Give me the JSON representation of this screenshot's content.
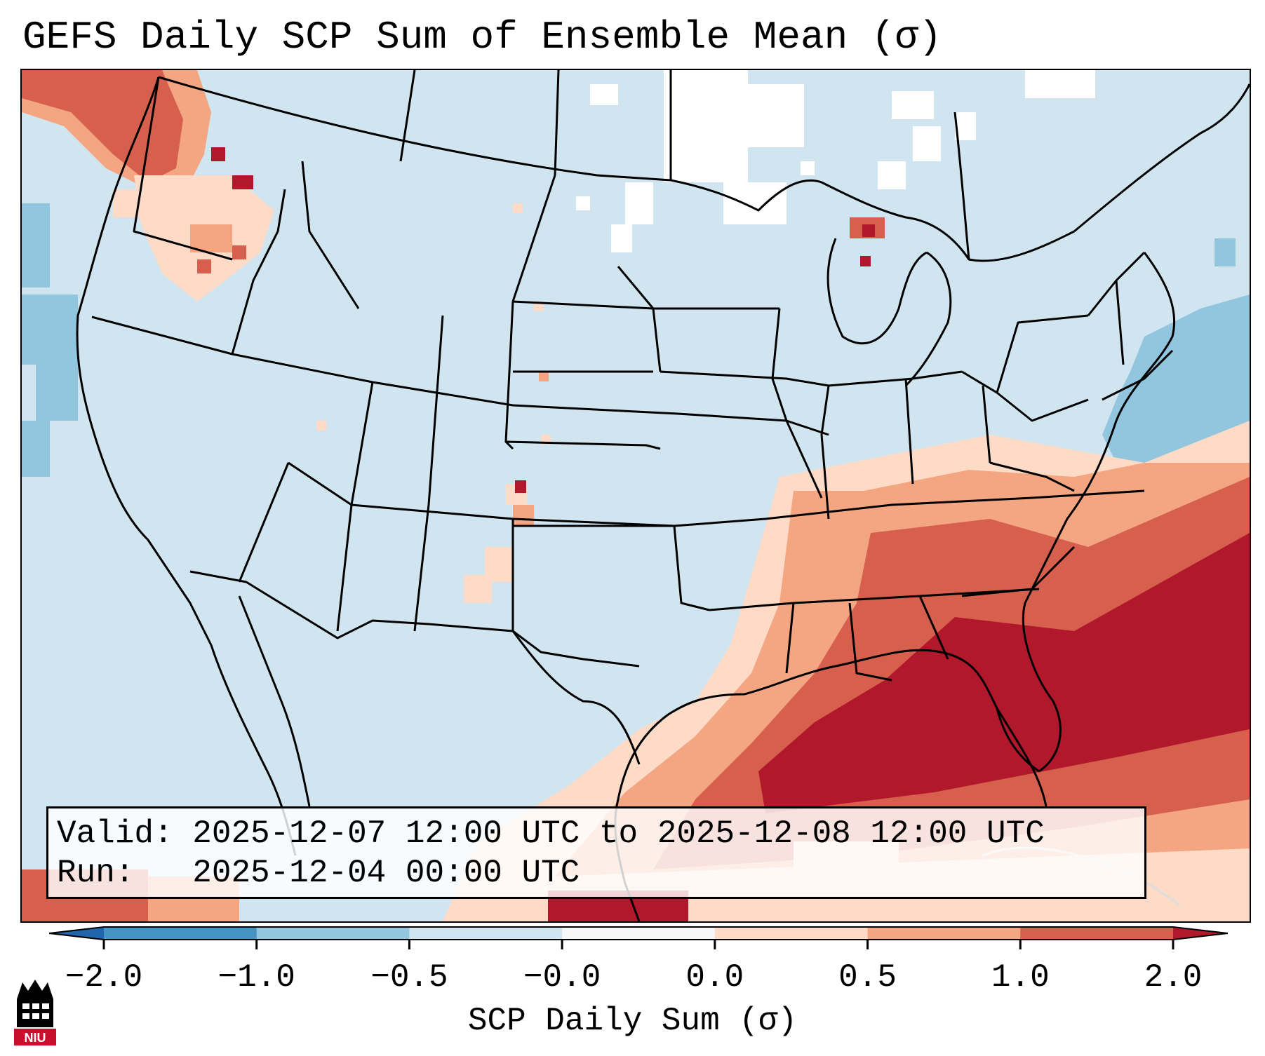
{
  "title": "GEFS Daily SCP Sum of Ensemble Mean (σ)",
  "map": {
    "region": "Contiguous United States",
    "background_color": "#d1e5f0",
    "feature_colors": {
      "coast_and_borders": "#000000",
      "missing_data": "#ffffff"
    }
  },
  "info_box": {
    "valid_line": "Valid: 2025-12-07 12:00 UTC to 2025-12-08 12:00 UTC",
    "run_line": "Run:   2025-12-04 00:00 UTC"
  },
  "colorbar": {
    "label": "SCP Daily Sum (σ)",
    "tick_labels": [
      "−2.0",
      "−1.0",
      "−0.5",
      "−0.0",
      "0.0",
      "0.5",
      "1.0",
      "2.0"
    ],
    "bins": [
      {
        "range": "< -2.0",
        "color": "#2166ac"
      },
      {
        "range": "-2.0 to -1.0",
        "color": "#4393c3"
      },
      {
        "range": "-1.0 to -0.5",
        "color": "#92c5de"
      },
      {
        "range": "-0.5 to -0.0",
        "color": "#d1e5f0"
      },
      {
        "range": "-0.0 to 0.0",
        "color": "#f7f7f7"
      },
      {
        "range": "0.0 to 0.5",
        "color": "#fddbc7"
      },
      {
        "range": "0.5 to 1.0",
        "color": "#f4a582"
      },
      {
        "range": "1.0 to 2.0",
        "color": "#d6604d"
      },
      {
        "range": "> 2.0",
        "color": "#b2182b"
      }
    ]
  },
  "logo": {
    "text": "NIU",
    "color": "#c8102e"
  }
}
